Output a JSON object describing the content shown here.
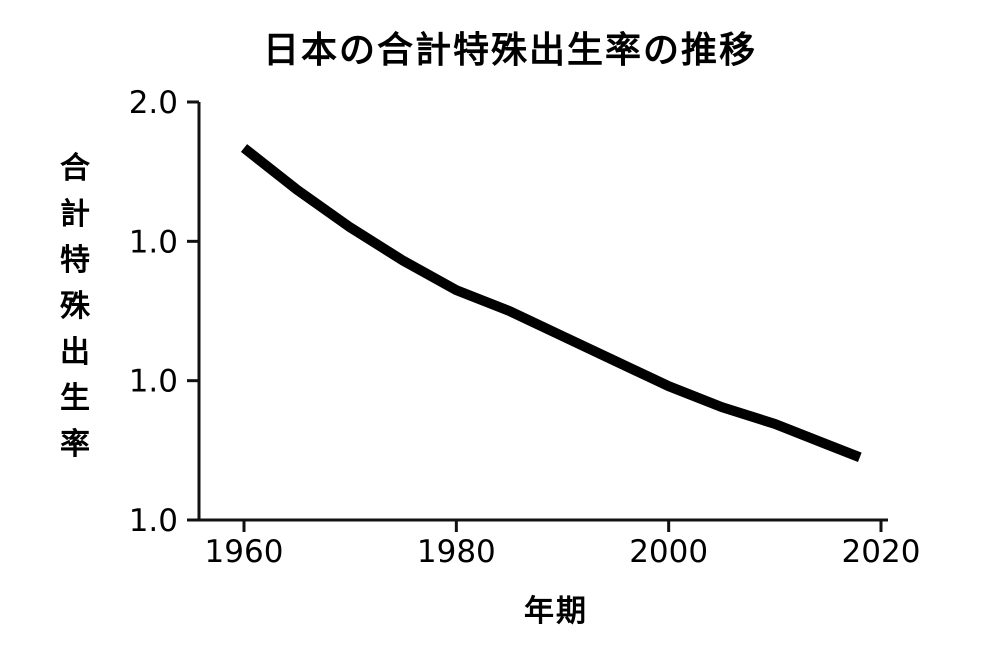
{
  "chart_data": {
    "type": "line",
    "title": "日本の合計特殊出生率の推移",
    "xlabel": "年期",
    "ylabel": "合計特殊出生率",
    "x_ticks": [
      "1960",
      "1980",
      "2000",
      "2020"
    ],
    "y_tick_labels": [
      "2.0",
      "1.0",
      "1.0",
      "1.0"
    ],
    "xlim": [
      1960,
      2020
    ],
    "ylim": [
      1.0,
      2.0
    ],
    "grid": false,
    "series": [
      {
        "x": [
          1960,
          1965,
          1970,
          1975,
          1980,
          1985,
          1990,
          1995,
          2000,
          2005,
          2010,
          2015,
          2018
        ],
        "y": [
          1.89,
          1.79,
          1.7,
          1.62,
          1.55,
          1.5,
          1.44,
          1.38,
          1.32,
          1.27,
          1.23,
          1.18,
          1.15
        ]
      }
    ],
    "colors": {
      "line": "#000000",
      "axis": "#111111",
      "background": "#ffffff"
    }
  }
}
